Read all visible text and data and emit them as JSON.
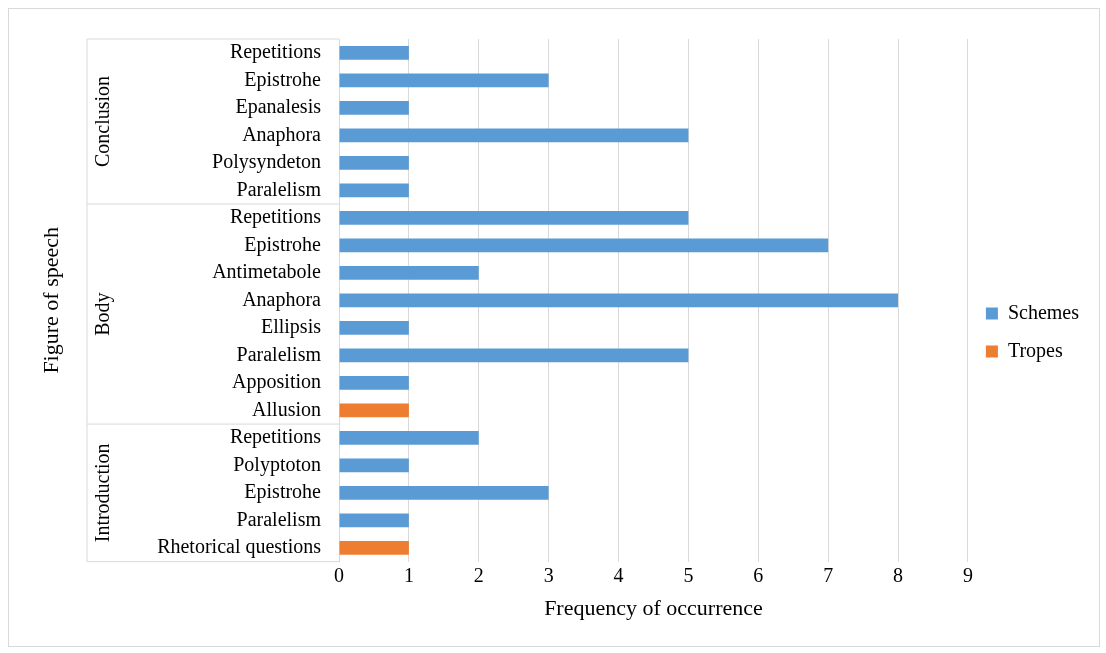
{
  "chart_data": {
    "type": "bar",
    "orientation": "horizontal",
    "xlabel": "Frequency of occurrence",
    "ylabel": "Figure of speech",
    "categories": [
      "Repetitions",
      "Epistrohe",
      "Epanalesis",
      "Anaphora",
      "Polysyndeton",
      "Paralelism",
      "Repetitions",
      "Epistrohe",
      "Antimetabole",
      "Anaphora",
      "Ellipsis",
      "Paralelism",
      "Apposition",
      "Allusion",
      "Repetitions",
      "Polyptoton",
      "Epistrohe",
      "Paralelism",
      "Rhetorical questions"
    ],
    "series": [
      {
        "name": "Schemes",
        "color": "#5b9bd5",
        "values": [
          1,
          3,
          1,
          5,
          1,
          1,
          5,
          7,
          2,
          8,
          1,
          5,
          1,
          null,
          2,
          1,
          3,
          1,
          null
        ]
      },
      {
        "name": "Tropes",
        "color": "#ed7d31",
        "values": [
          null,
          null,
          null,
          null,
          null,
          null,
          null,
          null,
          null,
          null,
          null,
          null,
          null,
          1,
          null,
          null,
          null,
          null,
          1
        ]
      }
    ],
    "annotations": [
      "Conclusion",
      "Body",
      "Introduction"
    ],
    "xlim": [
      0,
      9
    ],
    "xticks": [
      0,
      1,
      2,
      3,
      4,
      5,
      6,
      7,
      8,
      9
    ],
    "grid": "x",
    "legend": "right"
  }
}
